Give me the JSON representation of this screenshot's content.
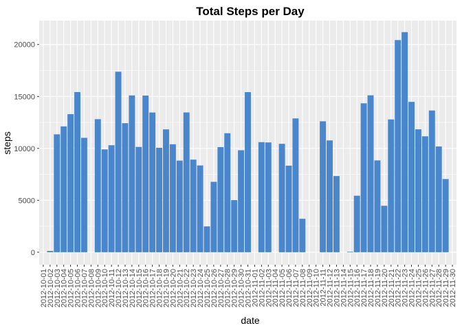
{
  "chart_data": {
    "type": "bar",
    "title": "Total Steps per Day",
    "xlabel": "date",
    "ylabel": "steps",
    "ylim": [
      -1200,
      22300
    ],
    "yticks": [
      0,
      5000,
      10000,
      15000,
      20000
    ],
    "grid": true,
    "legend": "none",
    "bar_color": "#4a86cc",
    "panel_color": "#ebebeb",
    "categories": [
      "2012-10-01",
      "2012-10-02",
      "2012-10-03",
      "2012-10-04",
      "2012-10-05",
      "2012-10-06",
      "2012-10-07",
      "2012-10-08",
      "2012-10-09",
      "2012-10-10",
      "2012-10-11",
      "2012-10-12",
      "2012-10-13",
      "2012-10-14",
      "2012-10-15",
      "2012-10-16",
      "2012-10-17",
      "2012-10-18",
      "2012-10-19",
      "2012-10-20",
      "2012-10-21",
      "2012-10-22",
      "2012-10-23",
      "2012-10-24",
      "2012-10-25",
      "2012-10-26",
      "2012-10-27",
      "2012-10-28",
      "2012-10-29",
      "2012-10-30",
      "2012-10-31",
      "2012-11-01",
      "2012-11-02",
      "2012-11-03",
      "2012-11-04",
      "2012-11-05",
      "2012-11-06",
      "2012-11-07",
      "2012-11-08",
      "2012-11-09",
      "2012-11-10",
      "2012-11-11",
      "2012-11-12",
      "2012-11-13",
      "2012-11-14",
      "2012-11-15",
      "2012-11-16",
      "2012-11-17",
      "2012-11-18",
      "2012-11-19",
      "2012-11-20",
      "2012-11-21",
      "2012-11-22",
      "2012-11-23",
      "2012-11-24",
      "2012-11-25",
      "2012-11-26",
      "2012-11-27",
      "2012-11-28",
      "2012-11-29",
      "2012-11-30"
    ],
    "values": [
      0,
      126,
      11352,
      12116,
      13294,
      15420,
      11015,
      0,
      12811,
      9900,
      10304,
      17382,
      12426,
      15098,
      10139,
      15084,
      13452,
      10056,
      11829,
      10395,
      8821,
      13460,
      8918,
      8355,
      2492,
      6778,
      10119,
      11458,
      5018,
      9819,
      15414,
      0,
      10600,
      10571,
      0,
      10439,
      8334,
      12883,
      3219,
      0,
      0,
      12608,
      10765,
      7336,
      0,
      41,
      5441,
      14339,
      15110,
      8841,
      4472,
      12787,
      20427,
      21194,
      14478,
      11834,
      11162,
      13646,
      10183,
      7047,
      0
    ]
  }
}
